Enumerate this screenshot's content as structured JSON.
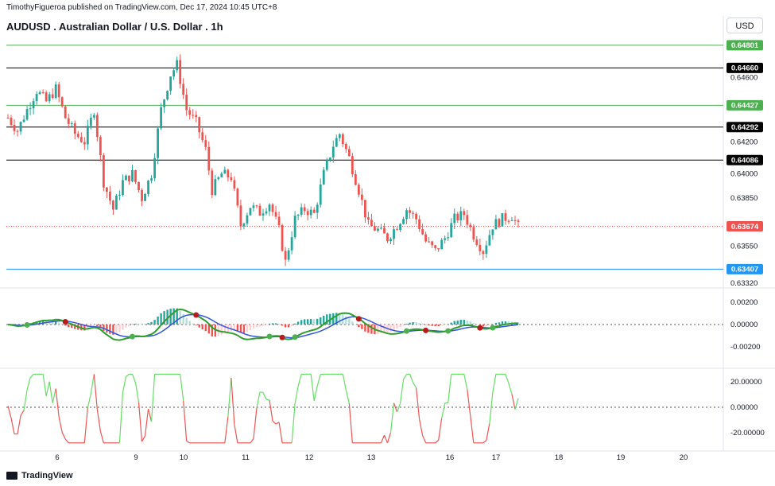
{
  "header": {
    "publisher": "TimothyFigueroa published on TradingView.com, Dec 17, 2024 10:45 UTC+8",
    "title": "AUDUSD . Australian Dollar / U.S. Dollar . 1h",
    "currency": "USD",
    "brand": "TradingView"
  },
  "colors": {
    "up": "#26a69a",
    "down": "#ef5350",
    "green_line": "#4caf50",
    "black_line": "#000000",
    "blue_line": "#2196f3",
    "macd_fast": "#2e9e2e",
    "macd_slow": "#3355dd",
    "osc_up": "#66dd66",
    "osc_down": "#ee5555"
  },
  "chart_data": [
    {
      "type": "candlestick",
      "name": "price",
      "y_ticks": [
        "0.64600",
        "0.64200",
        "0.64000",
        "0.63850",
        "0.63550",
        "0.63320"
      ],
      "x_ticks": [
        "6",
        "9",
        "10",
        "11",
        "12",
        "13",
        "16",
        "17",
        "18",
        "19",
        "20"
      ],
      "levels": [
        {
          "value": 0.64801,
          "label": "0.64801",
          "color": "#4caf50",
          "tag_color": "#4caf50"
        },
        {
          "value": 0.6466,
          "label": "0.64660",
          "color": "#000000",
          "tag_color": "#000000"
        },
        {
          "value": 0.64427,
          "label": "0.64427",
          "color": "#4caf50",
          "tag_color": "#4caf50"
        },
        {
          "value": 0.64292,
          "label": "0.64292",
          "color": "#000000",
          "tag_color": "#000000"
        },
        {
          "value": 0.64086,
          "label": "0.64086",
          "color": "#000000",
          "tag_color": "#000000"
        },
        {
          "value": 0.63407,
          "label": "0.63407",
          "color": "#2196f3",
          "tag_color": "#2196f3"
        }
      ],
      "last_price": {
        "value": 0.63674,
        "label": "0.63674",
        "color": "#ef5350"
      },
      "close_path": [
        [
          0,
          0.6435
        ],
        [
          3,
          0.6427
        ],
        [
          6,
          0.644
        ],
        [
          9,
          0.6452
        ],
        [
          12,
          0.6445
        ],
        [
          15,
          0.6453
        ],
        [
          18,
          0.6435
        ],
        [
          21,
          0.6425
        ],
        [
          24,
          0.642
        ],
        [
          27,
          0.644
        ],
        [
          30,
          0.6395
        ],
        [
          33,
          0.6378
        ],
        [
          36,
          0.6395
        ],
        [
          39,
          0.64
        ],
        [
          42,
          0.6385
        ],
        [
          45,
          0.64
        ],
        [
          48,
          0.644
        ],
        [
          51,
          0.6462
        ],
        [
          53,
          0.6468
        ],
        [
          56,
          0.644
        ],
        [
          59,
          0.6432
        ],
        [
          62,
          0.6415
        ],
        [
          64,
          0.639
        ],
        [
          67,
          0.64
        ],
        [
          70,
          0.6398
        ],
        [
          73,
          0.6368
        ],
        [
          76,
          0.638
        ],
        [
          79,
          0.6376
        ],
        [
          82,
          0.6382
        ],
        [
          85,
          0.6365
        ],
        [
          87,
          0.6345
        ],
        [
          90,
          0.6372
        ],
        [
          93,
          0.6378
        ],
        [
          96,
          0.6375
        ],
        [
          99,
          0.64
        ],
        [
          102,
          0.6418
        ],
        [
          104,
          0.6425
        ],
        [
          107,
          0.641
        ],
        [
          110,
          0.639
        ],
        [
          113,
          0.6368
        ],
        [
          116,
          0.6365
        ],
        [
          119,
          0.636
        ],
        [
          122,
          0.6368
        ],
        [
          125,
          0.6378
        ],
        [
          128,
          0.6372
        ],
        [
          131,
          0.6358
        ],
        [
          134,
          0.6352
        ],
        [
          137,
          0.636
        ],
        [
          140,
          0.6372
        ],
        [
          143,
          0.6375
        ],
        [
          146,
          0.6362
        ],
        [
          149,
          0.6352
        ],
        [
          152,
          0.6368
        ],
        [
          155,
          0.6372
        ],
        [
          158,
          0.6374
        ],
        [
          160,
          0.6367
        ]
      ]
    },
    {
      "type": "macd",
      "name": "oscillator-1",
      "y_ticks": [
        "0.00200",
        "0.00000",
        "-0.00200"
      ],
      "zero": "0.00000"
    },
    {
      "type": "line",
      "name": "oscillator-2",
      "y_ticks": [
        "20.00000",
        "0.00000",
        "-20.00000"
      ]
    }
  ]
}
